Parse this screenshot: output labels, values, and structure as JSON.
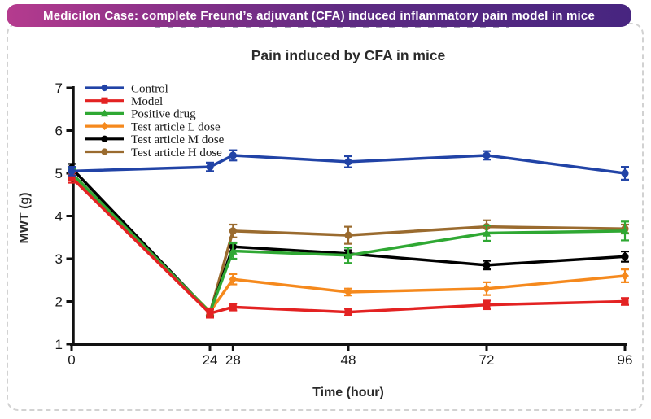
{
  "banner": {
    "text": "Medicilon Case: complete Freund’s adjuvant (CFA) induced inflammatory pain model in mice",
    "gradient_left": "#b53b8e",
    "gradient_right": "#472580"
  },
  "chart_data": {
    "type": "line",
    "title": "Pain induced by CFA in mice",
    "xlabel": "Time (hour)",
    "ylabel": "MWT (g)",
    "x": [
      0,
      24,
      28,
      48,
      72,
      96
    ],
    "xlim": [
      0,
      96
    ],
    "ylim": [
      1,
      7
    ],
    "yticks": [
      1,
      2,
      3,
      4,
      5,
      6,
      7
    ],
    "grid": false,
    "error_bars": true,
    "legend_position": "top-left-inside",
    "axis_color": "#111111",
    "series": [
      {
        "name": "Control",
        "color": "#2143a6",
        "marker": "circle",
        "values": [
          5.05,
          5.15,
          5.42,
          5.27,
          5.42,
          5.0
        ],
        "errors": [
          0.1,
          0.1,
          0.12,
          0.13,
          0.1,
          0.15
        ]
      },
      {
        "name": "Model",
        "color": "#e32222",
        "marker": "square",
        "values": [
          4.9,
          1.72,
          1.87,
          1.75,
          1.92,
          2.0
        ],
        "errors": [
          0.12,
          0.1,
          0.08,
          0.08,
          0.1,
          0.08
        ]
      },
      {
        "name": "Positive drug",
        "color": "#2fa833",
        "marker": "triangle",
        "values": [
          5.0,
          1.75,
          3.18,
          3.08,
          3.6,
          3.65
        ],
        "errors": [
          0.1,
          0.08,
          0.18,
          0.18,
          0.18,
          0.22
        ]
      },
      {
        "name": "Test article L dose",
        "color": "#f5891d",
        "marker": "diamond",
        "values": [
          4.95,
          1.76,
          2.52,
          2.22,
          2.3,
          2.6
        ],
        "errors": [
          0.1,
          0.08,
          0.12,
          0.08,
          0.15,
          0.15
        ]
      },
      {
        "name": "Test article M dose",
        "color": "#000000",
        "marker": "circle",
        "values": [
          5.12,
          1.74,
          3.28,
          3.12,
          2.85,
          3.05
        ],
        "errors": [
          0.1,
          0.08,
          0.1,
          0.08,
          0.1,
          0.12
        ]
      },
      {
        "name": "Test article H dose",
        "color": "#9a6b2f",
        "marker": "circle",
        "values": [
          5.0,
          1.73,
          3.65,
          3.55,
          3.75,
          3.7
        ],
        "errors": [
          0.1,
          0.08,
          0.15,
          0.2,
          0.15,
          0.1
        ]
      }
    ]
  }
}
